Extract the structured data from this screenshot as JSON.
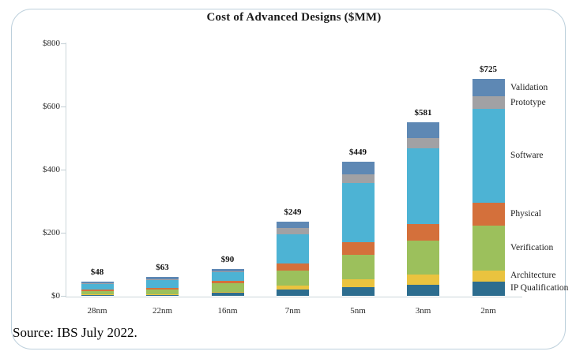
{
  "title": "Cost of Advanced Designs ($MM)",
  "source": "Source: IBS July 2022.",
  "colors": {
    "validation": "#5e88b4",
    "prototype": "#a1a1a4",
    "software": "#4db3d4",
    "physical": "#d4703b",
    "verification": "#9cc05c",
    "architecture": "#eac33f",
    "ip_qualification": "#2d6d8f",
    "axis_line": "#ccd6da",
    "card_border": "#bdd0dc",
    "text": "#1b1b1b"
  },
  "chart_data": {
    "type": "bar",
    "stacked": true,
    "title": "Cost of Advanced Designs ($MM)",
    "categories": [
      "28nm",
      "22nm",
      "16nm",
      "7nm",
      "5nm",
      "3nm",
      "2nm"
    ],
    "totals": [
      48,
      63,
      90,
      249,
      449,
      581,
      725
    ],
    "total_labels": [
      "$48",
      "$63",
      "$90",
      "$249",
      "$449",
      "$581",
      "$725"
    ],
    "series": [
      {
        "name": "IP Qualification",
        "color": "#2d6d8f",
        "values": [
          2,
          3,
          10,
          22,
          29,
          37,
          48
        ]
      },
      {
        "name": "Architecture",
        "color": "#eac33f",
        "values": [
          2,
          2,
          3,
          12,
          27,
          34,
          37
        ]
      },
      {
        "name": "Verification",
        "color": "#9cc05c",
        "values": [
          13,
          17,
          28,
          50,
          80,
          113,
          150
        ]
      },
      {
        "name": "Physical",
        "color": "#d4703b",
        "values": [
          3,
          4,
          8,
          23,
          43,
          55,
          76
        ]
      },
      {
        "name": "Software",
        "color": "#4db3d4",
        "values": [
          20,
          26,
          30,
          100,
          198,
          255,
          314
        ]
      },
      {
        "name": "Prototype",
        "color": "#a1a1a4",
        "values": [
          3,
          4,
          3,
          21,
          29,
          34,
          42
        ]
      },
      {
        "name": "Validation",
        "color": "#5e88b4",
        "values": [
          5,
          7,
          8,
          21,
          43,
          53,
          58
        ]
      }
    ],
    "xlabel": "",
    "ylabel": "",
    "ylim": [
      0,
      800
    ],
    "yticks": [
      {
        "value": 0,
        "label": "$0"
      },
      {
        "value": 200,
        "label": "$200"
      },
      {
        "value": 400,
        "label": "$400"
      },
      {
        "value": 600,
        "label": "$600"
      },
      {
        "value": 800,
        "label": "$800"
      }
    ],
    "grid": false,
    "legend_position": "right"
  }
}
